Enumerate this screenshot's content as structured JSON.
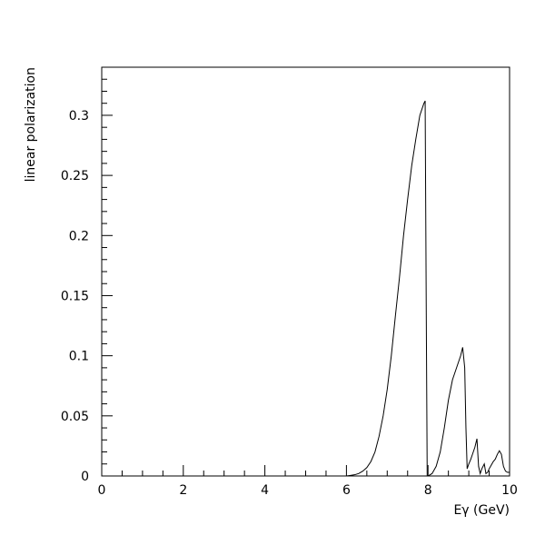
{
  "chart_data": {
    "type": "line",
    "title": "",
    "xlabel": "Eγ (GeV)",
    "ylabel": "linear polarization",
    "xlim": [
      0,
      10
    ],
    "ylim": [
      0,
      0.34
    ],
    "x_ticks": [
      "0",
      "2",
      "4",
      "6",
      "8",
      "10"
    ],
    "y_ticks": [
      "0",
      "0.05",
      "0.1",
      "0.15",
      "0.2",
      "0.25",
      "0.3"
    ],
    "grid": false,
    "line_color": "#000000",
    "series": [
      {
        "x": [
          5.86,
          6.0,
          6.1,
          6.2,
          6.3,
          6.4,
          6.5,
          6.6,
          6.7,
          6.8,
          6.9,
          7.0,
          7.1,
          7.2,
          7.3,
          7.4,
          7.5,
          7.6,
          7.7,
          7.8,
          7.85,
          7.9,
          7.93,
          7.96,
          7.98,
          8.0,
          8.1,
          8.2,
          8.3,
          8.4,
          8.5,
          8.6,
          8.7,
          8.8,
          8.85,
          8.9,
          8.93,
          8.96,
          9.0,
          9.05,
          9.1,
          9.15,
          9.2,
          9.24,
          9.28,
          9.32,
          9.38,
          9.42,
          9.46,
          9.5,
          9.55,
          9.6,
          9.65,
          9.7,
          9.75,
          9.8,
          9.85,
          9.9,
          9.95,
          10.0
        ],
        "y": [
          0.0,
          0.0,
          0.0005,
          0.001,
          0.002,
          0.004,
          0.007,
          0.012,
          0.02,
          0.033,
          0.05,
          0.072,
          0.1,
          0.133,
          0.165,
          0.2,
          0.23,
          0.258,
          0.28,
          0.3,
          0.305,
          0.31,
          0.312,
          0.12,
          0.0,
          0.0,
          0.002,
          0.008,
          0.02,
          0.04,
          0.063,
          0.08,
          0.09,
          0.1,
          0.107,
          0.09,
          0.04,
          0.006,
          0.01,
          0.014,
          0.019,
          0.024,
          0.031,
          0.008,
          0.002,
          0.006,
          0.01,
          0.002,
          0.003,
          0.006,
          0.009,
          0.012,
          0.014,
          0.018,
          0.021,
          0.018,
          0.008,
          0.004,
          0.003,
          0.003
        ]
      }
    ]
  }
}
